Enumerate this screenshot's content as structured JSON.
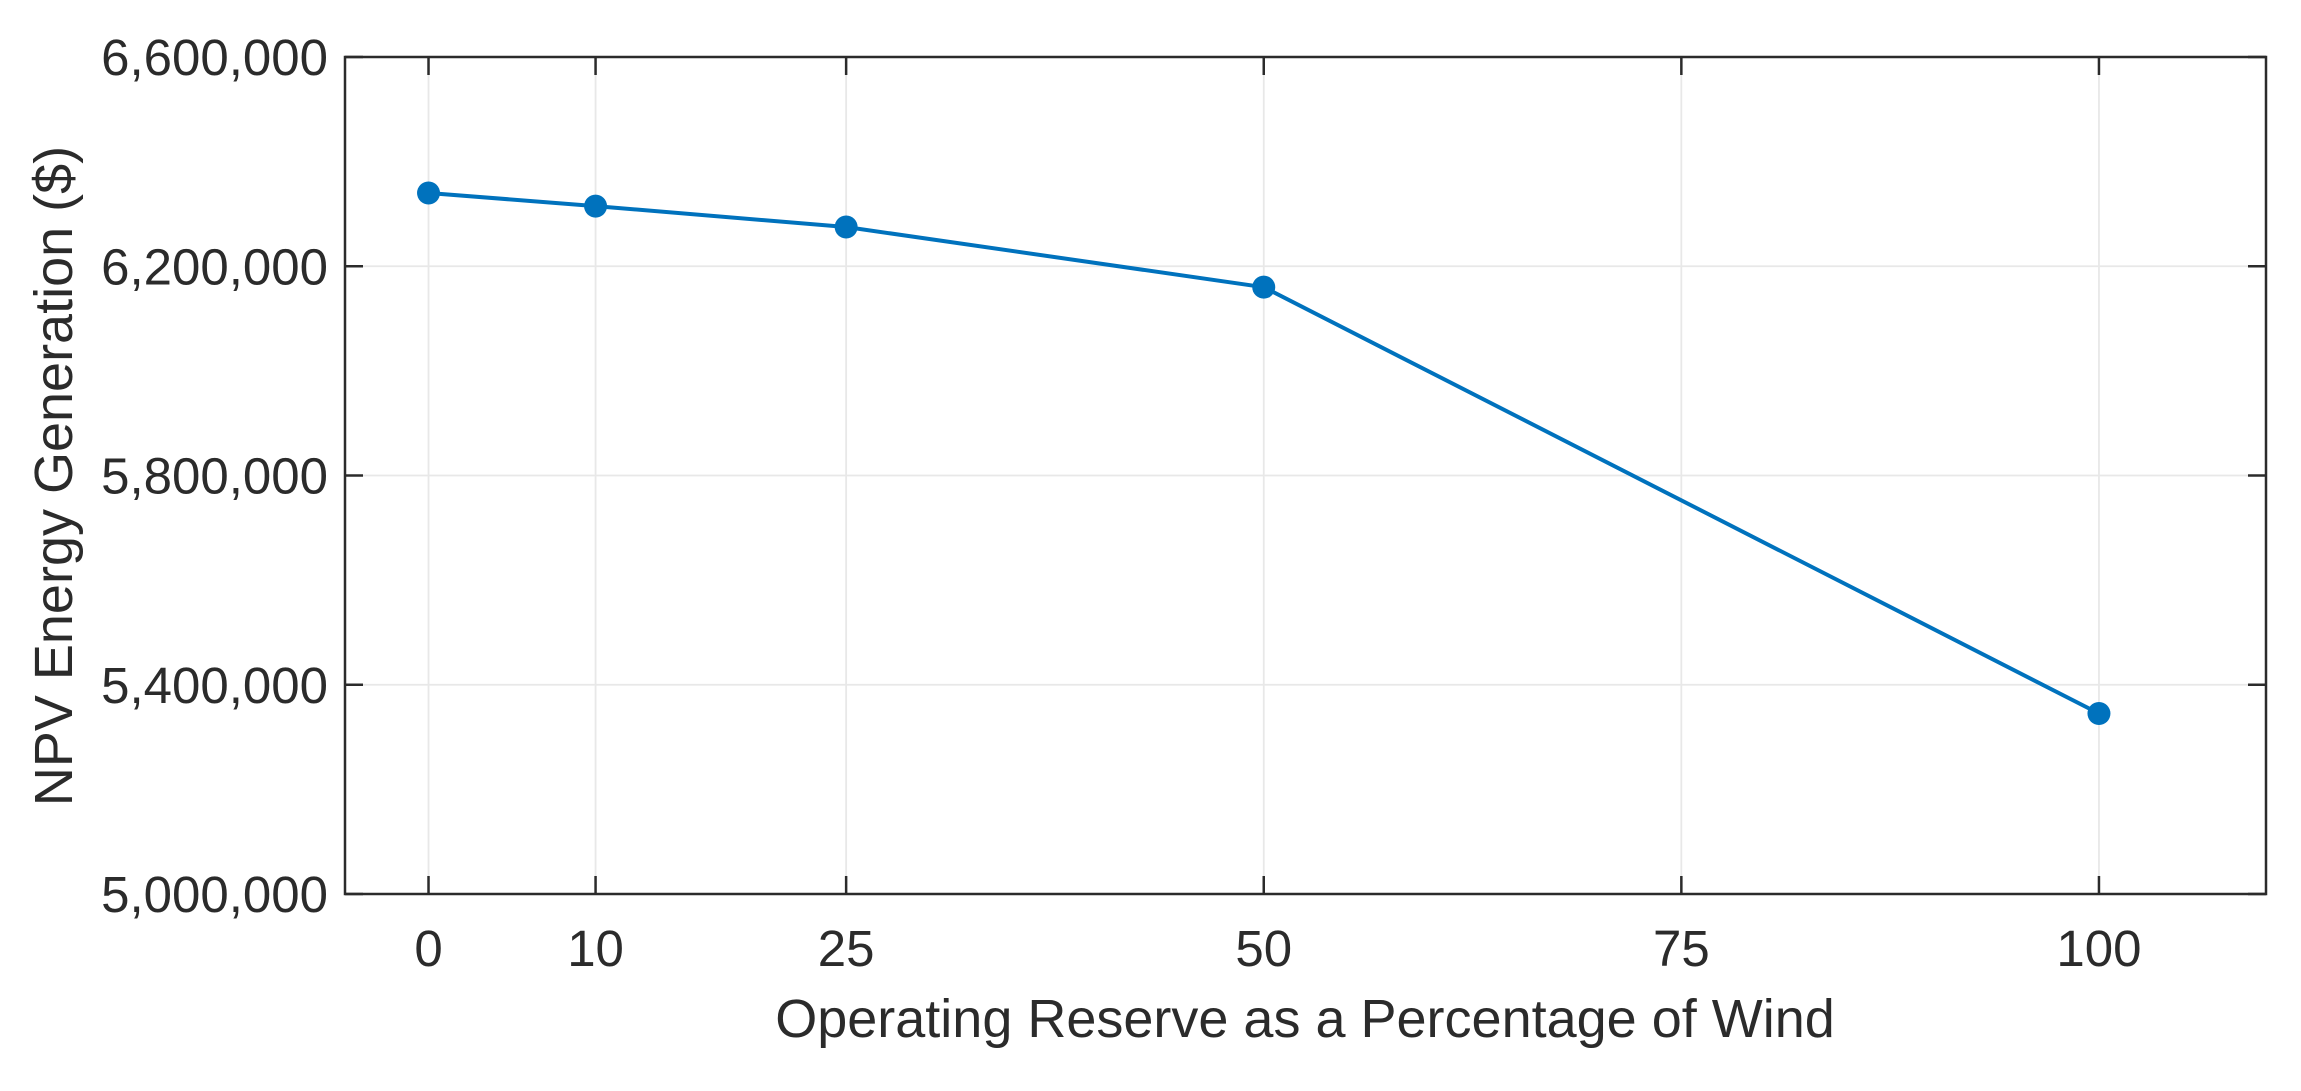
{
  "chart_data": {
    "type": "line",
    "title": "",
    "xlabel": "Operating Reserve as a Percentage of Wind",
    "ylabel": "NPV Energy Generation ($)",
    "x": [
      0,
      10,
      25,
      50,
      100
    ],
    "y": [
      6340000,
      6315000,
      6275000,
      6160000,
      5345000
    ],
    "xlim": [
      -5,
      110
    ],
    "ylim": [
      5000000,
      6600000
    ],
    "xticks": [
      0,
      10,
      25,
      50,
      75,
      100
    ],
    "yticks": [
      5000000,
      5400000,
      5800000,
      6200000,
      6600000
    ],
    "ytick_format": "comma",
    "grid": true,
    "legend": null,
    "marker_style": "filled-circle",
    "colors": {
      "line": "#0072BD",
      "marker": "#0072BD",
      "axis": "#2b2b2b",
      "text": "#2b2b2b",
      "grid": "#e8e8e8",
      "background": "#ffffff"
    }
  }
}
